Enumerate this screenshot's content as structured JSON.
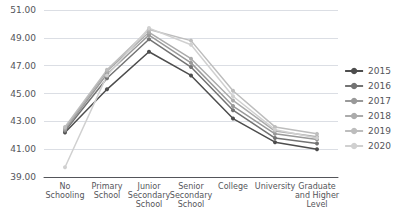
{
  "chart_data": {
    "type": "line",
    "categories": [
      "No\nSchooling",
      "Primary\nSchool",
      "Junior\nSecondary\nSchool",
      "Senior\nSecondary\nSchool",
      "College",
      "University",
      "Graduate\nand Higher\nLevel"
    ],
    "series": [
      {
        "name": "2015",
        "color": "#4d4d4d",
        "marker": "circle",
        "values": [
          42.2,
          45.3,
          48.0,
          46.3,
          43.2,
          41.5,
          41.0
        ]
      },
      {
        "name": "2016",
        "color": "#737373",
        "marker": "circle",
        "values": [
          42.3,
          46.1,
          48.9,
          46.9,
          43.8,
          41.8,
          41.4
        ]
      },
      {
        "name": "2017",
        "color": "#999999",
        "marker": "circle",
        "values": [
          42.4,
          46.4,
          49.2,
          47.2,
          44.1,
          42.1,
          41.7
        ]
      },
      {
        "name": "2018",
        "color": "#ababab",
        "marker": "circle",
        "values": [
          42.5,
          46.6,
          49.4,
          47.5,
          44.5,
          42.3,
          41.9
        ]
      },
      {
        "name": "2019",
        "color": "#bdbdbd",
        "marker": "circle",
        "values": [
          42.6,
          46.7,
          49.6,
          48.8,
          45.2,
          42.6,
          42.1
        ]
      },
      {
        "name": "2020",
        "color": "#d0d0d0",
        "marker": "circle",
        "values": [
          39.7,
          46.3,
          49.7,
          48.5,
          44.8,
          42.4,
          41.8
        ]
      }
    ],
    "ylim": [
      39.0,
      51.0
    ],
    "yticks": [
      {
        "value": 39.0,
        "label": "39.00"
      },
      {
        "value": 41.0,
        "label": "41.00"
      },
      {
        "value": 43.0,
        "label": "43.00"
      },
      {
        "value": 45.0,
        "label": "45.00"
      },
      {
        "value": 47.0,
        "label": "47.00"
      },
      {
        "value": 49.0,
        "label": "49.00"
      },
      {
        "value": 51.0,
        "label": "51.00"
      }
    ],
    "grid": true,
    "legend": "right"
  }
}
